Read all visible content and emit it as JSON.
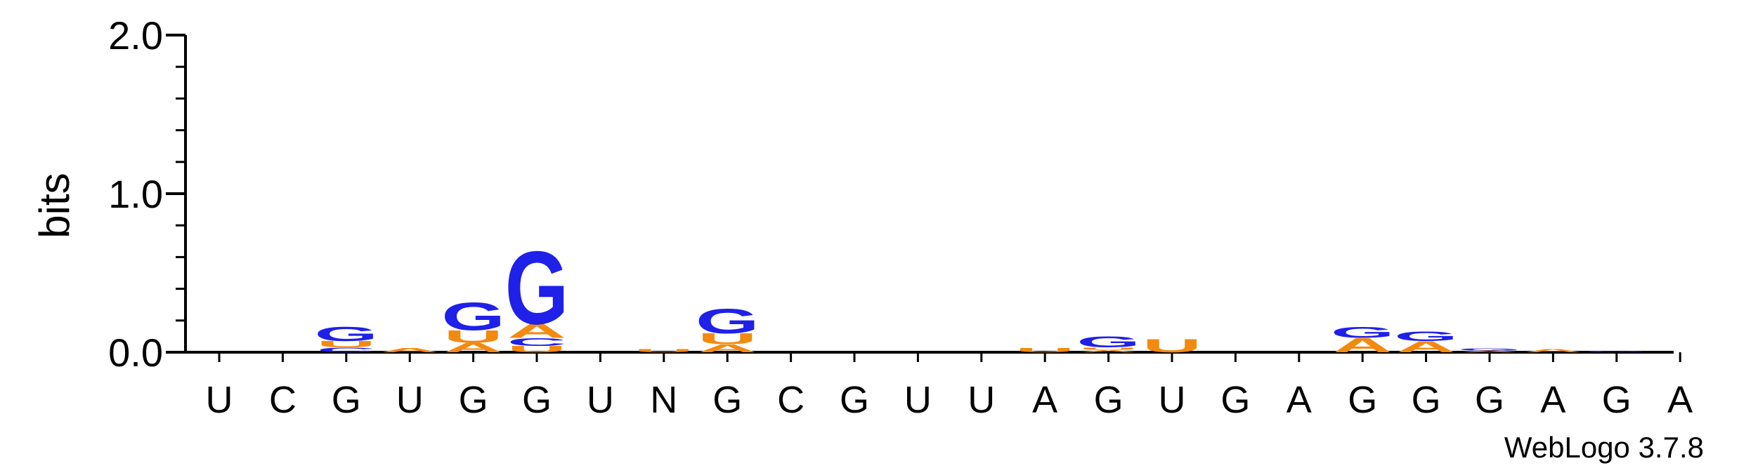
{
  "chart_data": {
    "type": "sequence-logo",
    "ylabel": "bits",
    "ylim": [
      0,
      2.0
    ],
    "yticks": [
      "0.0",
      "1.0",
      "2.0"
    ],
    "positions": [
      "U",
      "C",
      "G",
      "U",
      "G",
      "G",
      "U",
      "N",
      "G",
      "C",
      "G",
      "U",
      "U",
      "A",
      "G",
      "U",
      "G",
      "A",
      "G",
      "G",
      "G",
      "A",
      "G",
      "A"
    ],
    "colors": {
      "G": "#1f20e8",
      "U": "#f28a10",
      "A": "#f28a10",
      "C": "#1f20e8"
    },
    "stacks": [
      [],
      [],
      [
        {
          "letter": "C",
          "bits": 0.03
        },
        {
          "letter": "U",
          "bits": 0.04
        },
        {
          "letter": "G",
          "bits": 0.09
        }
      ],
      [
        {
          "letter": "A",
          "bits": 0.025
        }
      ],
      [
        {
          "letter": "A",
          "bits": 0.06
        },
        {
          "letter": "U",
          "bits": 0.08
        },
        {
          "letter": "G",
          "bits": 0.18
        }
      ],
      [
        {
          "letter": "U",
          "bits": 0.04
        },
        {
          "letter": "C",
          "bits": 0.05
        },
        {
          "letter": "A",
          "bits": 0.09
        },
        {
          "letter": "G",
          "bits": 0.47
        }
      ],
      [],
      [
        {
          "letter": "U",
          "bits": 0.02
        }
      ],
      [
        {
          "letter": "A",
          "bits": 0.05
        },
        {
          "letter": "U",
          "bits": 0.07
        },
        {
          "letter": "G",
          "bits": 0.16
        }
      ],
      [],
      [],
      [],
      [],
      [
        {
          "letter": "U",
          "bits": 0.025
        }
      ],
      [
        {
          "letter": "A",
          "bits": 0.015
        },
        {
          "letter": "U",
          "bits": 0.015
        },
        {
          "letter": "G",
          "bits": 0.07
        }
      ],
      [
        {
          "letter": "U",
          "bits": 0.085
        }
      ],
      [],
      [],
      [
        {
          "letter": "A",
          "bits": 0.09
        },
        {
          "letter": "G",
          "bits": 0.07
        }
      ],
      [
        {
          "letter": "A",
          "bits": 0.07
        },
        {
          "letter": "G",
          "bits": 0.06
        }
      ],
      [
        {
          "letter": "A",
          "bits": 0.01
        },
        {
          "letter": "G",
          "bits": 0.015
        }
      ],
      [
        {
          "letter": "A",
          "bits": 0.02
        }
      ],
      [
        {
          "letter": "G",
          "bits": 0.008
        }
      ],
      []
    ]
  },
  "credit": "WebLogo 3.7.8"
}
